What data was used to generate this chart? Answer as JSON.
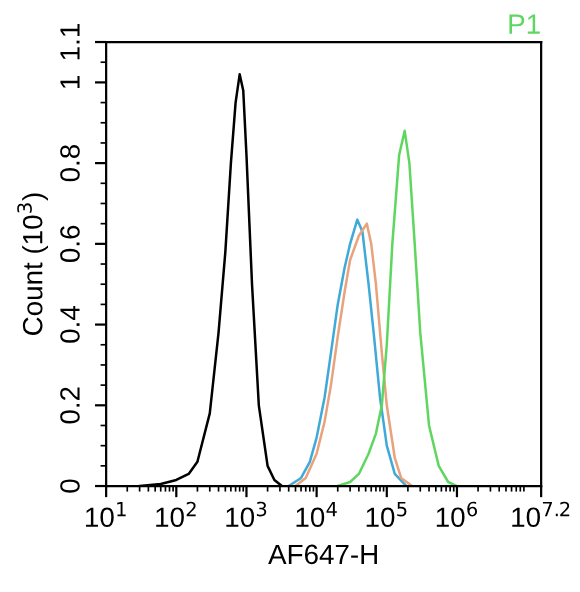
{
  "chart_data": {
    "type": "line",
    "title": "P1",
    "xlabel": "AF647-H",
    "ylabel": "Count (10$^{3}$)",
    "log": "x",
    "grid": false,
    "marker": "none",
    "line_style": "solid",
    "xlim": [
      10,
      15848932
    ],
    "xticks": [
      {
        "value": 10,
        "label": "10$^{1}$"
      },
      {
        "value": 100,
        "label": "10$^{2}$"
      },
      {
        "value": 1000,
        "label": "10$^{3}$"
      },
      {
        "value": 10000,
        "label": "10$^{4}$"
      },
      {
        "value": 100000,
        "label": "10$^{5}$"
      },
      {
        "value": 1000000,
        "label": "10$^{6}$"
      },
      {
        "value": 15848932,
        "label": "10$^{7.2}$"
      }
    ],
    "ylim": [
      0,
      1.1
    ],
    "yticks": [
      0,
      0.2,
      0.4,
      0.6,
      0.8,
      1,
      1.1
    ],
    "series": [
      {
        "color": "#000000",
        "x": [
          30,
          60,
          100,
          150,
          200,
          300,
          400,
          500,
          600,
          700,
          800,
          900,
          1000,
          1200,
          1500,
          2000,
          2500,
          3200
        ],
        "values": [
          0,
          0.005,
          0.015,
          0.03,
          0.06,
          0.18,
          0.38,
          0.58,
          0.8,
          0.95,
          1.02,
          0.98,
          0.82,
          0.5,
          0.2,
          0.05,
          0.015,
          0
        ]
      },
      {
        "color": "#3fa9d8",
        "x": [
          4000,
          6000,
          8000,
          10000,
          13000,
          16000,
          20000,
          25000,
          30000,
          38000,
          45000,
          55000,
          65000,
          80000,
          100000,
          130000,
          190000
        ],
        "values": [
          0,
          0.02,
          0.06,
          0.12,
          0.22,
          0.33,
          0.45,
          0.54,
          0.6,
          0.66,
          0.63,
          0.5,
          0.38,
          0.22,
          0.1,
          0.03,
          0
        ]
      },
      {
        "color": "#e8a27c",
        "x": [
          5000,
          7000,
          10000,
          13000,
          16000,
          20000,
          25000,
          30000,
          40000,
          52000,
          60000,
          70000,
          85000,
          100000,
          130000,
          160000,
          230000
        ],
        "values": [
          0,
          0.02,
          0.08,
          0.16,
          0.25,
          0.37,
          0.48,
          0.56,
          0.62,
          0.65,
          0.6,
          0.5,
          0.33,
          0.2,
          0.07,
          0.02,
          0
        ]
      },
      {
        "color": "#5fd65f",
        "x": [
          20000,
          30000,
          40000,
          55000,
          70000,
          85000,
          100000,
          120000,
          150000,
          180000,
          210000,
          250000,
          300000,
          400000,
          550000,
          750000,
          1000000
        ],
        "values": [
          0,
          0.01,
          0.03,
          0.08,
          0.13,
          0.2,
          0.35,
          0.6,
          0.82,
          0.88,
          0.8,
          0.6,
          0.38,
          0.15,
          0.05,
          0.01,
          0
        ]
      }
    ]
  }
}
